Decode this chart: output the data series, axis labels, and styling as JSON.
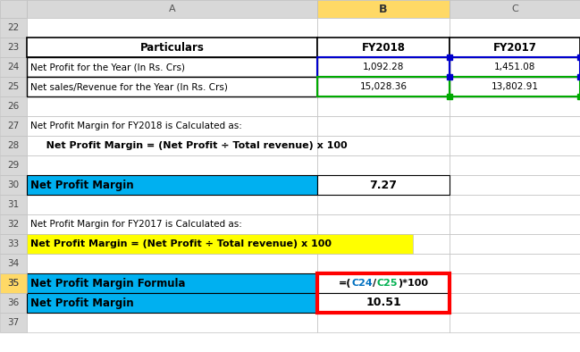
{
  "bg_color": "#ffffff",
  "col_header_bg": "#d8d8d8",
  "col_B_header_bg": "#ffd966",
  "cyan_color": "#00b0f0",
  "yellow_color": "#ffff00",
  "red_border": "#ff0000",
  "dark_border": "#000000",
  "light_border": "#c0c0c0",
  "row_num_bg": "#d8d8d8",
  "rows": [
    22,
    23,
    24,
    25,
    26,
    27,
    28,
    29,
    30,
    31,
    32,
    33,
    34,
    35,
    36,
    37
  ],
  "header_row_text": {
    "A": "Particulars",
    "B": "FY2018",
    "C": "FY2017"
  },
  "row24": {
    "A": "Net Profit for the Year (In Rs. Crs)",
    "B": "1,092.28",
    "C": "1,451.08"
  },
  "row25": {
    "A": "Net sales/Revenue for the Year (In Rs. Crs)",
    "B": "15,028.36",
    "C": "13,802.91"
  },
  "row27_text": "Net Profit Margin for FY2018 is Calculated as:",
  "row28_text": "   Net Profit Margin = (Net Profit ÷ Total revenue) x 100",
  "row30_label": "Net Profit Margin",
  "row30_value": "7.27",
  "row32_text": "Net Profit Margin for FY2017 is Calculated as:",
  "row33_text": "Net Profit Margin = (Net Profit ÷ Total revenue) x 100",
  "row35_label": "Net Profit Margin Formula",
  "row35_value_colored": [
    {
      "text": "=(",
      "color": "#000000"
    },
    {
      "text": "C24",
      "color": "#0070c0"
    },
    {
      "text": "/",
      "color": "#000000"
    },
    {
      "text": "C25",
      "color": "#00b050"
    },
    {
      "text": ")*100",
      "color": "#000000"
    }
  ],
  "row36_label": "Net Profit Margin",
  "row36_value": "10.51"
}
